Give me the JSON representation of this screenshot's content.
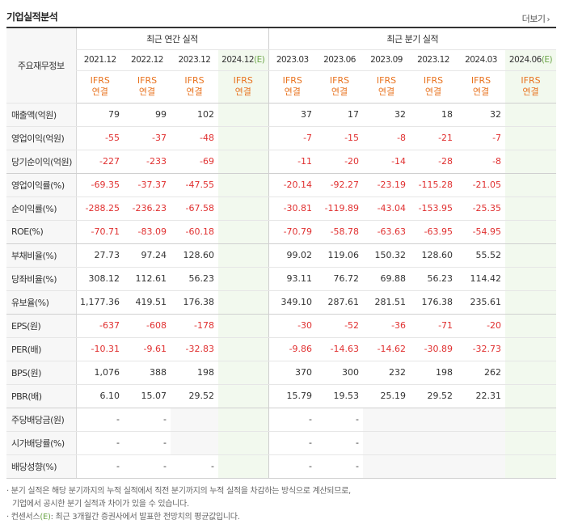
{
  "header": {
    "title": "기업실적분석",
    "more_label": "더보기"
  },
  "table": {
    "corner_label": "주요재무정보",
    "annual_group_label": "최근 연간 실적",
    "quarter_group_label": "최근 분기 실적",
    "annual_periods": [
      "2021.12",
      "2022.12",
      "2023.12",
      "2024.12"
    ],
    "quarter_periods": [
      "2023.03",
      "2023.06",
      "2023.09",
      "2023.12",
      "2024.03",
      "2024.06"
    ],
    "estimate_suffix": "(E)",
    "ifrs_label": "IFRS",
    "consolidated_label": "연결",
    "rows": [
      {
        "label": "매출액(억원)",
        "annual": [
          "79",
          "99",
          "102",
          ""
        ],
        "quarter": [
          "37",
          "17",
          "32",
          "18",
          "32",
          ""
        ]
      },
      {
        "label": "영업이익(억원)",
        "annual": [
          "-55",
          "-37",
          "-48",
          ""
        ],
        "quarter": [
          "-7",
          "-15",
          "-8",
          "-21",
          "-7",
          ""
        ]
      },
      {
        "label": "당기순이익(억원)",
        "annual": [
          "-227",
          "-233",
          "-69",
          ""
        ],
        "quarter": [
          "-11",
          "-20",
          "-14",
          "-28",
          "-8",
          ""
        ]
      },
      {
        "label": "영업이익률(%)",
        "annual": [
          "-69.35",
          "-37.37",
          "-47.55",
          ""
        ],
        "quarter": [
          "-20.14",
          "-92.27",
          "-23.19",
          "-115.28",
          "-21.05",
          ""
        ]
      },
      {
        "label": "순이익률(%)",
        "annual": [
          "-288.25",
          "-236.23",
          "-67.58",
          ""
        ],
        "quarter": [
          "-30.81",
          "-119.89",
          "-43.04",
          "-153.95",
          "-25.35",
          ""
        ]
      },
      {
        "label": "ROE(%)",
        "annual": [
          "-70.71",
          "-83.09",
          "-60.18",
          ""
        ],
        "quarter": [
          "-70.79",
          "-58.78",
          "-63.63",
          "-63.95",
          "-54.95",
          ""
        ]
      },
      {
        "label": "부채비율(%)",
        "annual": [
          "27.73",
          "97.24",
          "128.60",
          ""
        ],
        "quarter": [
          "99.02",
          "119.06",
          "150.32",
          "128.60",
          "55.52",
          ""
        ]
      },
      {
        "label": "당좌비율(%)",
        "annual": [
          "308.12",
          "112.61",
          "56.23",
          ""
        ],
        "quarter": [
          "93.11",
          "76.72",
          "69.88",
          "56.23",
          "114.42",
          ""
        ]
      },
      {
        "label": "유보율(%)",
        "annual": [
          "1,177.36",
          "419.51",
          "176.38",
          ""
        ],
        "quarter": [
          "349.10",
          "287.61",
          "281.51",
          "176.38",
          "235.61",
          ""
        ]
      },
      {
        "label": "EPS(원)",
        "annual": [
          "-637",
          "-608",
          "-178",
          ""
        ],
        "quarter": [
          "-30",
          "-52",
          "-36",
          "-71",
          "-20",
          ""
        ]
      },
      {
        "label": "PER(배)",
        "annual": [
          "-10.31",
          "-9.61",
          "-32.83",
          ""
        ],
        "quarter": [
          "-9.86",
          "-14.63",
          "-14.62",
          "-30.89",
          "-32.73",
          ""
        ]
      },
      {
        "label": "BPS(원)",
        "annual": [
          "1,076",
          "388",
          "198",
          ""
        ],
        "quarter": [
          "370",
          "300",
          "232",
          "198",
          "262",
          ""
        ]
      },
      {
        "label": "PBR(배)",
        "annual": [
          "6.10",
          "15.07",
          "29.52",
          ""
        ],
        "quarter": [
          "15.79",
          "19.53",
          "25.19",
          "29.52",
          "22.31",
          ""
        ]
      },
      {
        "label": "주당배당금(원)",
        "annual": [
          "-",
          "-",
          "",
          ""
        ],
        "quarter": [
          "-",
          "-",
          "",
          "",
          "",
          ""
        ]
      },
      {
        "label": "시가배당률(%)",
        "annual": [
          "-",
          "-",
          "",
          ""
        ],
        "quarter": [
          "-",
          "-",
          "",
          "",
          "",
          ""
        ]
      },
      {
        "label": "배당성향(%)",
        "annual": [
          "-",
          "-",
          "-",
          ""
        ],
        "quarter": [
          "-",
          "-",
          "",
          "",
          "",
          ""
        ]
      }
    ]
  },
  "notes": {
    "line1": "· 분기 실적은 해당 분기까지의 누적 실적에서 직전 분기까지의 누적 실적을 차감하는 방식으로 계산되므로,",
    "line2": "기업에서 공시한 분기 실적과 차이가 있을 수 있습니다.",
    "line3_prefix": "· 컨센서스",
    "line3_e": "(E)",
    "line3_rest": ": 최근 3개월간 증권사에서 발표한 전망치의 평균값입니다."
  },
  "colors": {
    "negative": "#e03030",
    "ifrs": "#e8731f",
    "estimate_bg": "#f2f9ee",
    "estimate_mark": "#6da64a"
  }
}
